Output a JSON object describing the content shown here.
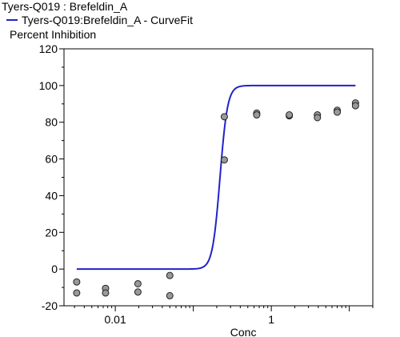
{
  "chart_data": {
    "type": "scatter",
    "title": "Tyers-Q019 : Brefeldin_A",
    "legend": "Tyers-Q019:Brefeldin_A - CurveFit",
    "ylabel": "Percent Inhibition",
    "xlabel": "Conc",
    "x_scale": "log",
    "xlim": [
      0.0022,
      20
    ],
    "ylim": [
      -20,
      120
    ],
    "y_ticks": [
      -20,
      0,
      20,
      40,
      60,
      80,
      100,
      120
    ],
    "x_ticks": [
      {
        "value": 0.01,
        "label": "0.01"
      },
      {
        "value": 1,
        "label": "1"
      }
    ],
    "legend_position": "top-left",
    "colors": {
      "curve": "#2222cc",
      "points": "#999999",
      "point_edge": "#222222"
    },
    "series": [
      {
        "name": "Tyers-Q019:Brefeldin_A - CurveFit",
        "kind": "curve",
        "model": "sigmoid",
        "bottom": 0,
        "top": 100,
        "ec50": 0.22,
        "hill": 9,
        "x_range": [
          0.0032,
          12
        ]
      },
      {
        "kind": "points",
        "points": [
          {
            "x": 0.0032,
            "y": -7
          },
          {
            "x": 0.0032,
            "y": -13
          },
          {
            "x": 0.0075,
            "y": -10.5
          },
          {
            "x": 0.0075,
            "y": -13
          },
          {
            "x": 0.0195,
            "y": -8
          },
          {
            "x": 0.0195,
            "y": -12.5
          },
          {
            "x": 0.05,
            "y": -3.5
          },
          {
            "x": 0.05,
            "y": -14.5
          },
          {
            "x": 0.25,
            "y": 83
          },
          {
            "x": 0.25,
            "y": 59.5
          },
          {
            "x": 0.65,
            "y": 85
          },
          {
            "x": 0.65,
            "y": 84
          },
          {
            "x": 1.7,
            "y": 83.5
          },
          {
            "x": 1.7,
            "y": 84
          },
          {
            "x": 3.9,
            "y": 84
          },
          {
            "x": 3.9,
            "y": 82.5
          },
          {
            "x": 7.0,
            "y": 86.5
          },
          {
            "x": 7.0,
            "y": 85.5
          },
          {
            "x": 12.0,
            "y": 90.5
          },
          {
            "x": 12.0,
            "y": 89
          }
        ]
      }
    ]
  }
}
